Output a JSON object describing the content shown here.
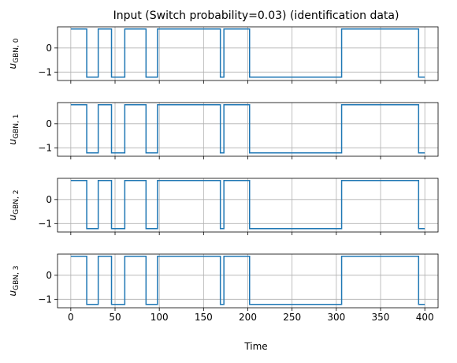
{
  "chart_data": {
    "type": "line",
    "title": "Input (Switch probability=0.03) (identification data)",
    "xlabel": "Time",
    "xlim": [
      -15,
      415
    ],
    "ylim": [
      -1.35,
      0.88
    ],
    "xticks": [
      0,
      50,
      100,
      150,
      200,
      250,
      300,
      350,
      400
    ],
    "yticks": [
      -1,
      0
    ],
    "grid": true,
    "line_color": "#1f77b4",
    "subplots": [
      {
        "ylabel_main": "u",
        "ylabel_sub": "GBN, 0",
        "x": [
          0,
          18,
          18,
          31,
          31,
          46,
          46,
          61,
          61,
          85,
          85,
          98,
          98,
          169,
          169,
          173,
          173,
          202,
          202,
          306,
          306,
          393,
          393,
          400
        ],
        "y": [
          0.79,
          0.79,
          -1.21,
          -1.21,
          0.79,
          0.79,
          -1.21,
          -1.21,
          0.79,
          0.79,
          -1.21,
          -1.21,
          0.79,
          0.79,
          -1.21,
          -1.21,
          0.79,
          0.79,
          -1.21,
          -1.21,
          0.79,
          0.79,
          -1.21,
          -1.21
        ]
      },
      {
        "ylabel_main": "u",
        "ylabel_sub": "GBN, 1",
        "x": [
          0,
          18,
          18,
          31,
          31,
          46,
          46,
          61,
          61,
          85,
          85,
          98,
          98,
          169,
          169,
          173,
          173,
          202,
          202,
          306,
          306,
          393,
          393,
          400
        ],
        "y": [
          0.79,
          0.79,
          -1.21,
          -1.21,
          0.79,
          0.79,
          -1.21,
          -1.21,
          0.79,
          0.79,
          -1.21,
          -1.21,
          0.79,
          0.79,
          -1.21,
          -1.21,
          0.79,
          0.79,
          -1.21,
          -1.21,
          0.79,
          0.79,
          -1.21,
          -1.21
        ]
      },
      {
        "ylabel_main": "u",
        "ylabel_sub": "GBN, 2",
        "x": [
          0,
          18,
          18,
          31,
          31,
          46,
          46,
          61,
          61,
          85,
          85,
          98,
          98,
          169,
          169,
          173,
          173,
          202,
          202,
          306,
          306,
          393,
          393,
          400
        ],
        "y": [
          0.79,
          0.79,
          -1.21,
          -1.21,
          0.79,
          0.79,
          -1.21,
          -1.21,
          0.79,
          0.79,
          -1.21,
          -1.21,
          0.79,
          0.79,
          -1.21,
          -1.21,
          0.79,
          0.79,
          -1.21,
          -1.21,
          0.79,
          0.79,
          -1.21,
          -1.21
        ]
      },
      {
        "ylabel_main": "u",
        "ylabel_sub": "GBN, 3",
        "x": [
          0,
          18,
          18,
          31,
          31,
          46,
          46,
          61,
          61,
          85,
          85,
          98,
          98,
          169,
          169,
          173,
          173,
          202,
          202,
          306,
          306,
          393,
          393,
          400
        ],
        "y": [
          0.79,
          0.79,
          -1.21,
          -1.21,
          0.79,
          0.79,
          -1.21,
          -1.21,
          0.79,
          0.79,
          -1.21,
          -1.21,
          0.79,
          0.79,
          -1.21,
          -1.21,
          0.79,
          0.79,
          -1.21,
          -1.21,
          0.79,
          0.79,
          -1.21,
          -1.21
        ]
      }
    ]
  }
}
